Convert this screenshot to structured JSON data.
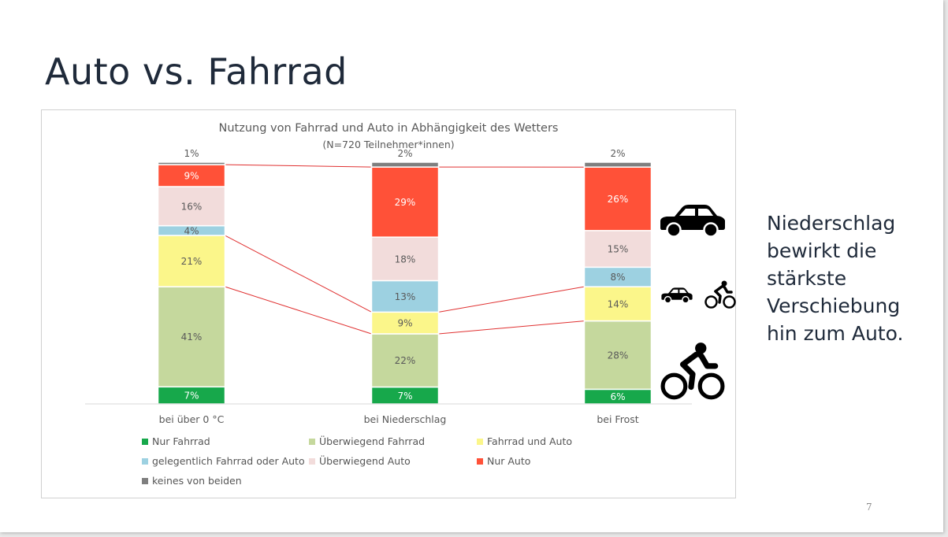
{
  "slide": {
    "title": "Auto vs. Fahrrad",
    "side_text": "Niederschlag bewirkt die stärkste Verschiebung hin zum Auto.",
    "page_number": "7"
  },
  "chart_data": {
    "type": "bar",
    "stacked": true,
    "percent": true,
    "title": "Nutzung von Fahrrad und Auto in Abhängigkeit des Wetters",
    "subtitle": "(N=720 Teilnehmer*innen)",
    "categories": [
      "bei über 0 °C",
      "bei Niederschlag",
      "bei Frost"
    ],
    "series": [
      {
        "name": "Nur Fahrrad",
        "color": "#17a84b",
        "values": [
          7,
          7,
          6
        ]
      },
      {
        "name": "Überwiegend Fahrrad",
        "color": "#c5d89d",
        "values": [
          41,
          22,
          28
        ]
      },
      {
        "name": "Fahrrad und Auto",
        "color": "#fbf68a",
        "values": [
          21,
          9,
          14
        ]
      },
      {
        "name": "gelegentlich Fahrrad oder Auto",
        "color": "#9dd1e1",
        "values": [
          4,
          13,
          8
        ]
      },
      {
        "name": "Überwiegend Auto",
        "color": "#f2dcdb",
        "values": [
          16,
          18,
          15
        ]
      },
      {
        "name": "Nur Auto",
        "color": "#ff5138",
        "values": [
          9,
          29,
          26
        ]
      },
      {
        "name": "keines von beiden",
        "color": "#7f7f7f",
        "values": [
          1,
          2,
          2
        ]
      }
    ],
    "ylim": [
      0,
      100
    ],
    "legend_position": "bottom",
    "grid": false,
    "connector_color": "#e03131",
    "icons": [
      "car-icon",
      "car-small-icon",
      "bicycle-small-icon",
      "bicycle-icon"
    ]
  }
}
